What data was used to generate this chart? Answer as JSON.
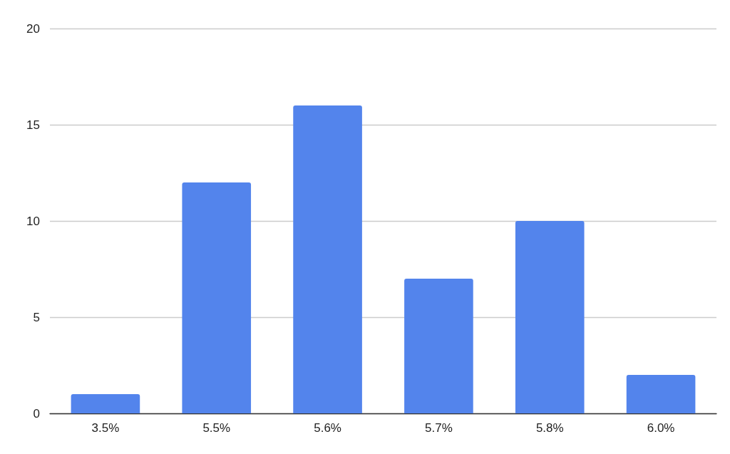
{
  "chart_data": {
    "type": "bar",
    "categories": [
      "3.5%",
      "5.5%",
      "5.6%",
      "5.7%",
      "5.8%",
      "6.0%"
    ],
    "values": [
      1,
      12,
      16,
      7,
      10,
      2
    ],
    "color": "#5384ec",
    "ylim": [
      0,
      20
    ],
    "yticks": [
      0,
      5,
      10,
      15,
      20
    ],
    "grid": "y"
  }
}
